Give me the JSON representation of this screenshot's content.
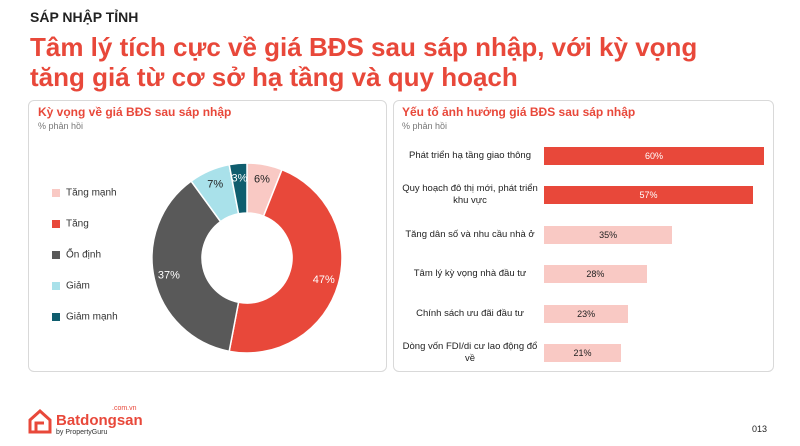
{
  "section": "SÁP NHẬP TỈNH",
  "title": [
    "Tâm lý tích cực về giá BĐS sau sáp nhập, với kỳ vọng",
    "tăng giá từ cơ sở hạ tầng và quy hoạch"
  ],
  "chart_data": [
    {
      "type": "donut",
      "title": "Kỳ vọng về giá BĐS sau sáp nhập",
      "subtitle": "% phản hồi",
      "categories": [
        "Tăng mạnh",
        "Tăng",
        "Ổn định",
        "Giảm",
        "Giảm mạnh"
      ],
      "values": [
        6,
        47,
        37,
        7,
        3
      ],
      "value_labels": [
        "6%",
        "47%",
        "37%",
        "7%",
        "3%"
      ],
      "colors": [
        "#f9c9c4",
        "#e8483a",
        "#595959",
        "#a9e1ea",
        "#0f5d6e"
      ]
    },
    {
      "type": "hbar",
      "title": "Yếu tố ảnh hưởng giá BĐS sau sáp nhập",
      "subtitle": "% phản hồi",
      "categories": [
        "Phát triển hạ tầng giao thông",
        "Quy hoạch đô thị mới, phát triển khu vực",
        "Tăng dân số và nhu cầu nhà ở",
        "Tâm lý kỳ vọng nhà đầu tư",
        "Chính sách ưu đãi đầu tư",
        "Dòng vốn FDI/di cư lao động đổ về"
      ],
      "values": [
        60,
        57,
        35,
        28,
        23,
        21
      ],
      "value_labels": [
        "60%",
        "57%",
        "35%",
        "28%",
        "23%",
        "21%"
      ],
      "colors": [
        "#e8483a",
        "#e8483a",
        "#f9c9c4",
        "#f9c9c4",
        "#f9c9c4",
        "#f9c9c4"
      ]
    }
  ],
  "footer": {
    "brand": "Batdongsan",
    "domain": ".com.vn",
    "tagline": "by PropertyGuru",
    "page": "013"
  }
}
